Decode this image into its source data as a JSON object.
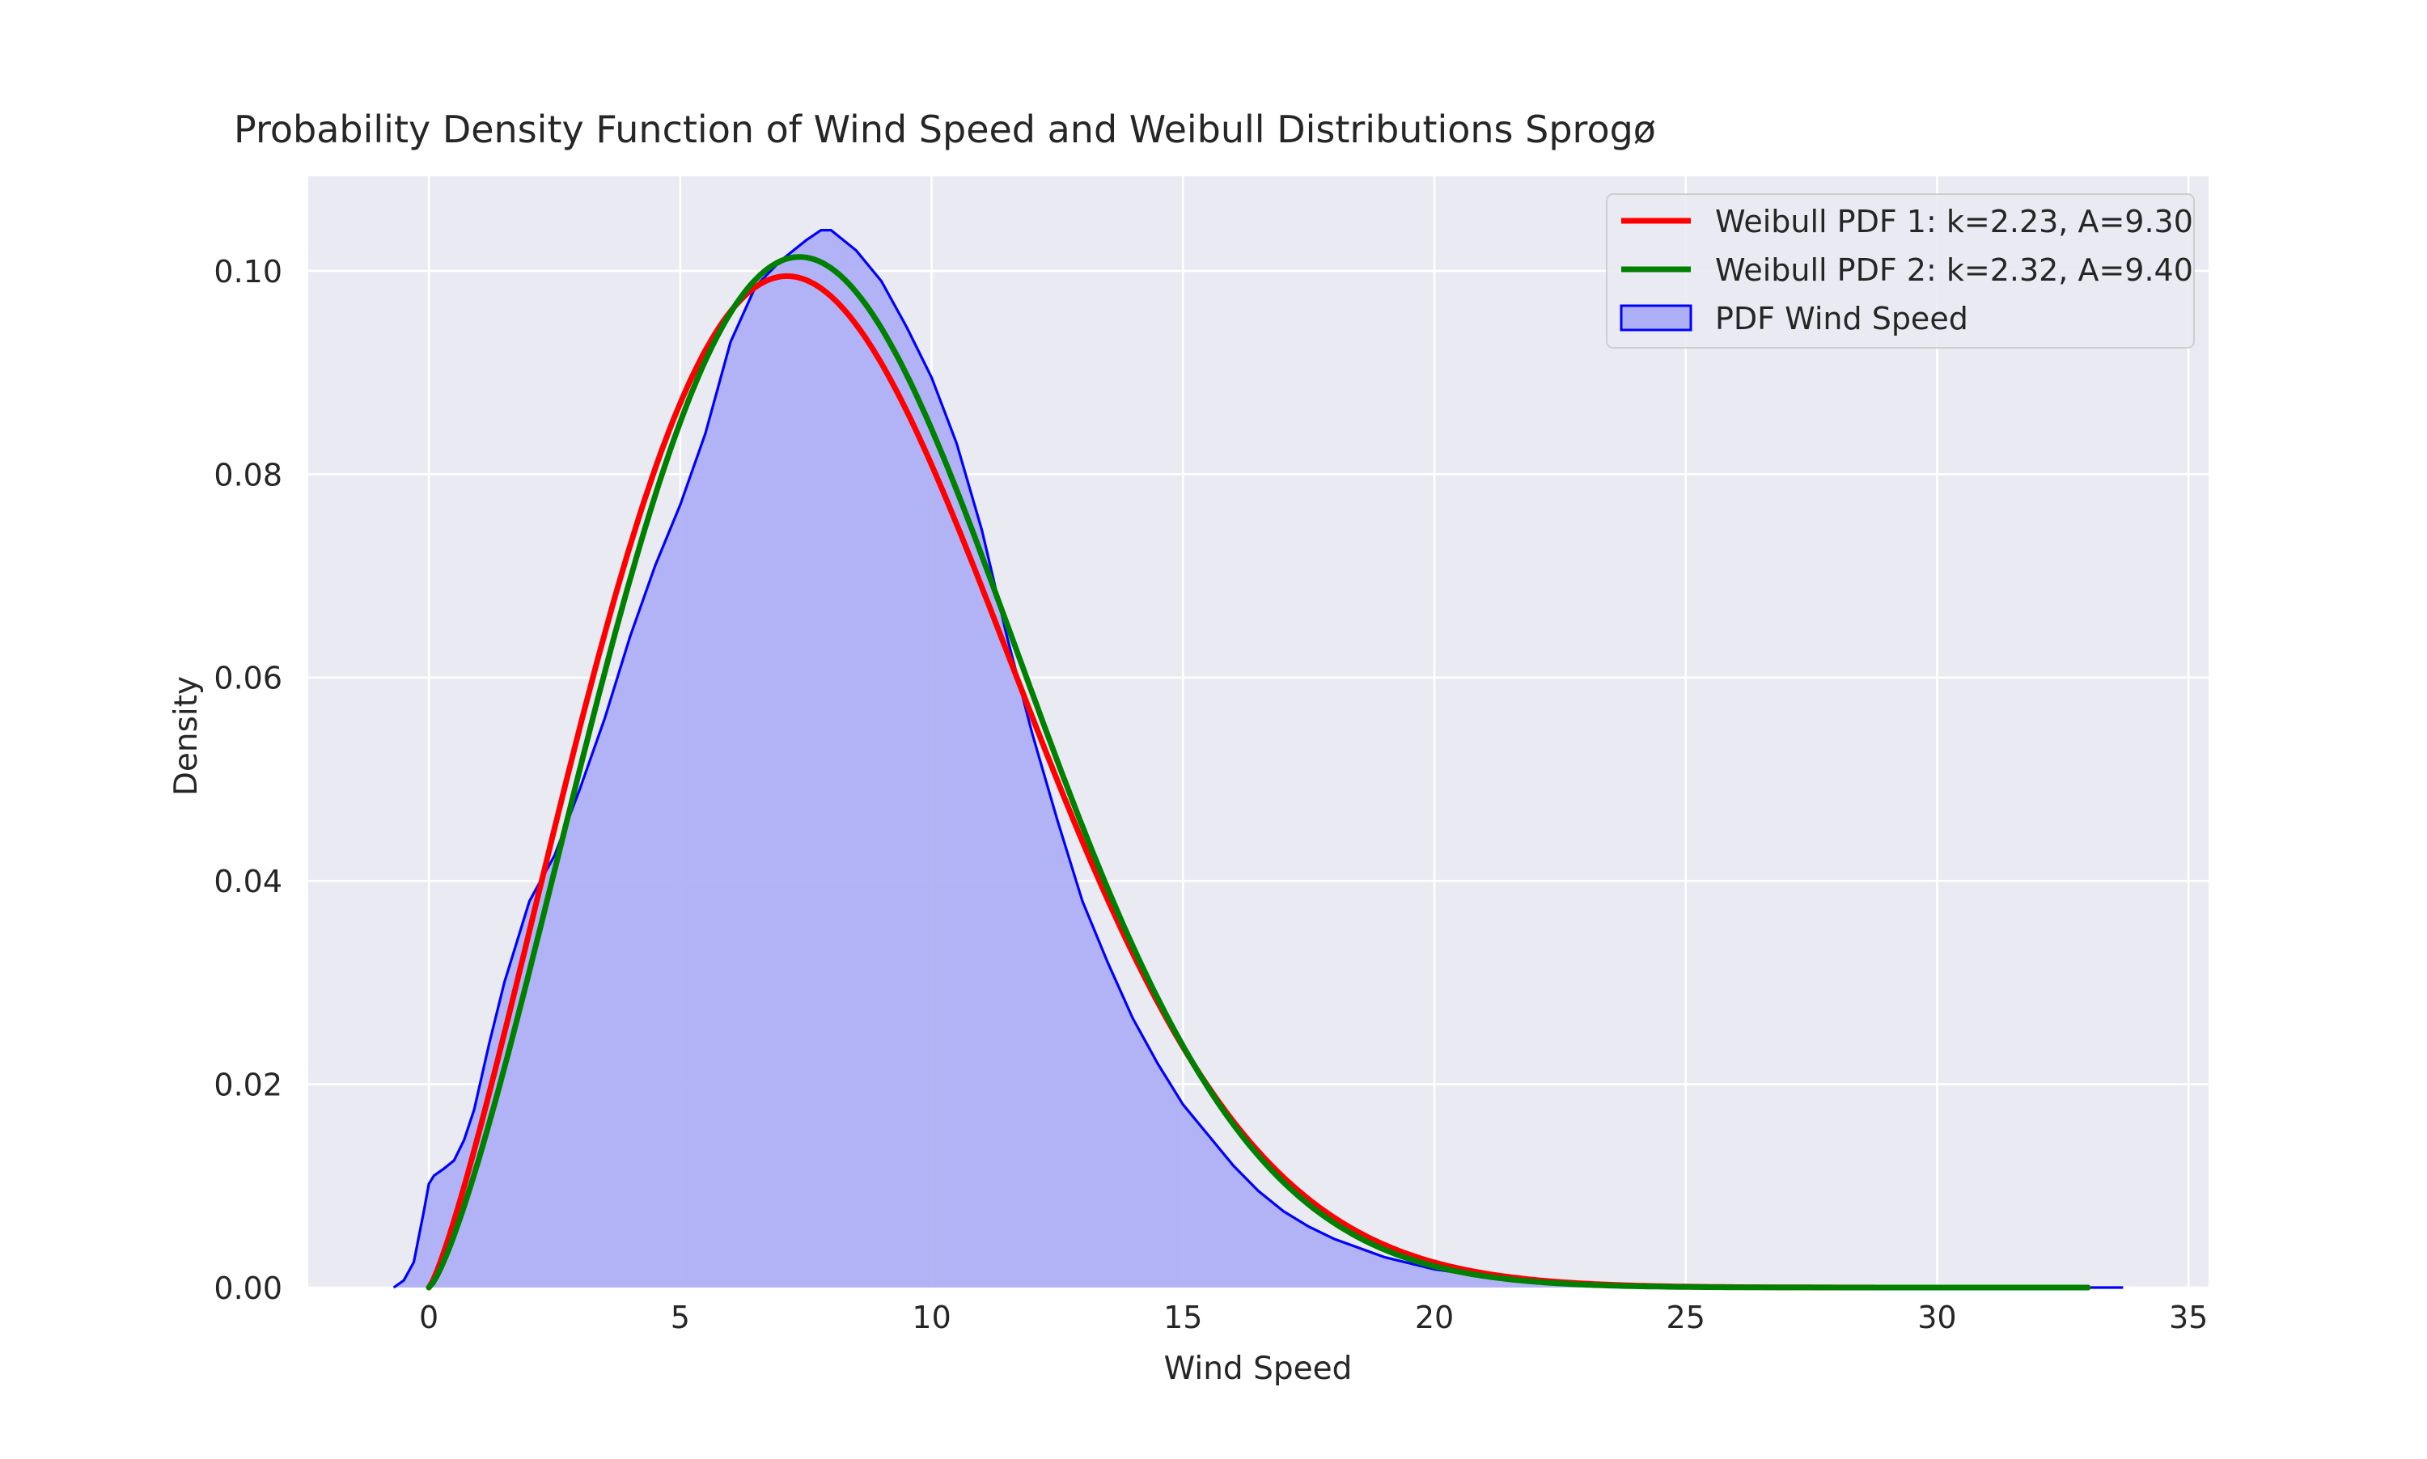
{
  "chart_data": {
    "type": "line",
    "title": "Probability Density Function of Wind Speed and Weibull Distributions Sprogø",
    "xlabel": "Wind Speed",
    "ylabel": "Density",
    "xlim": [
      -2.4,
      35.4
    ],
    "ylim": [
      0,
      0.1093
    ],
    "x_ticks": [
      0,
      5,
      10,
      15,
      20,
      25,
      30,
      35
    ],
    "x_tick_labels": [
      "0",
      "5",
      "10",
      "15",
      "20",
      "25",
      "30",
      "35"
    ],
    "y_ticks": [
      0,
      0.02,
      0.04,
      0.06,
      0.08,
      0.1
    ],
    "y_tick_labels": [
      "0.00",
      "0.02",
      "0.04",
      "0.06",
      "0.08",
      "0.10"
    ],
    "grid": true,
    "legend_position": "top-right",
    "series": [
      {
        "name": "Weibull PDF 1: k=2.23, A=9.30",
        "kind": "weibull",
        "k": 2.23,
        "A": 9.3,
        "x_range": [
          0,
          33
        ],
        "color": "#ff0000"
      },
      {
        "name": "Weibull PDF 2: k=2.32, A=9.40",
        "kind": "weibull",
        "k": 2.32,
        "A": 9.4,
        "x_range": [
          0,
          33
        ],
        "color": "#008000"
      },
      {
        "name": "PDF Wind Speed",
        "kind": "kde-area",
        "color": "#0000ff",
        "fill": "#aeb0f5",
        "x": [
          -0.7,
          -0.5,
          -0.3,
          -0.1,
          0.0,
          0.1,
          0.3,
          0.5,
          0.7,
          0.9,
          1.2,
          1.5,
          2.0,
          2.5,
          3.0,
          3.5,
          4.0,
          4.5,
          5.0,
          5.5,
          6.0,
          6.5,
          7.0,
          7.5,
          7.8,
          8.0,
          8.5,
          9.0,
          9.5,
          10.0,
          10.5,
          11.0,
          11.5,
          12.0,
          12.5,
          13.0,
          13.5,
          14.0,
          14.5,
          15.0,
          15.5,
          16.0,
          16.5,
          17.0,
          17.5,
          18.0,
          19.0,
          20.0,
          21.0,
          22.0,
          23.0,
          24.0,
          25.0,
          27.0,
          30.0,
          33.0,
          33.7
        ],
        "y": [
          0.0,
          0.0007,
          0.0025,
          0.0075,
          0.0102,
          0.011,
          0.0117,
          0.0125,
          0.0145,
          0.0175,
          0.024,
          0.03,
          0.038,
          0.0425,
          0.049,
          0.056,
          0.064,
          0.071,
          0.077,
          0.084,
          0.093,
          0.0985,
          0.101,
          0.103,
          0.104,
          0.104,
          0.102,
          0.099,
          0.0945,
          0.0895,
          0.083,
          0.0745,
          0.064,
          0.0545,
          0.046,
          0.038,
          0.032,
          0.0265,
          0.022,
          0.018,
          0.015,
          0.012,
          0.0095,
          0.0075,
          0.006,
          0.0048,
          0.003,
          0.0018,
          0.0011,
          0.0006,
          0.0004,
          0.0002,
          0.0001,
          5e-05,
          0.0,
          0.0,
          0.0
        ]
      }
    ]
  }
}
